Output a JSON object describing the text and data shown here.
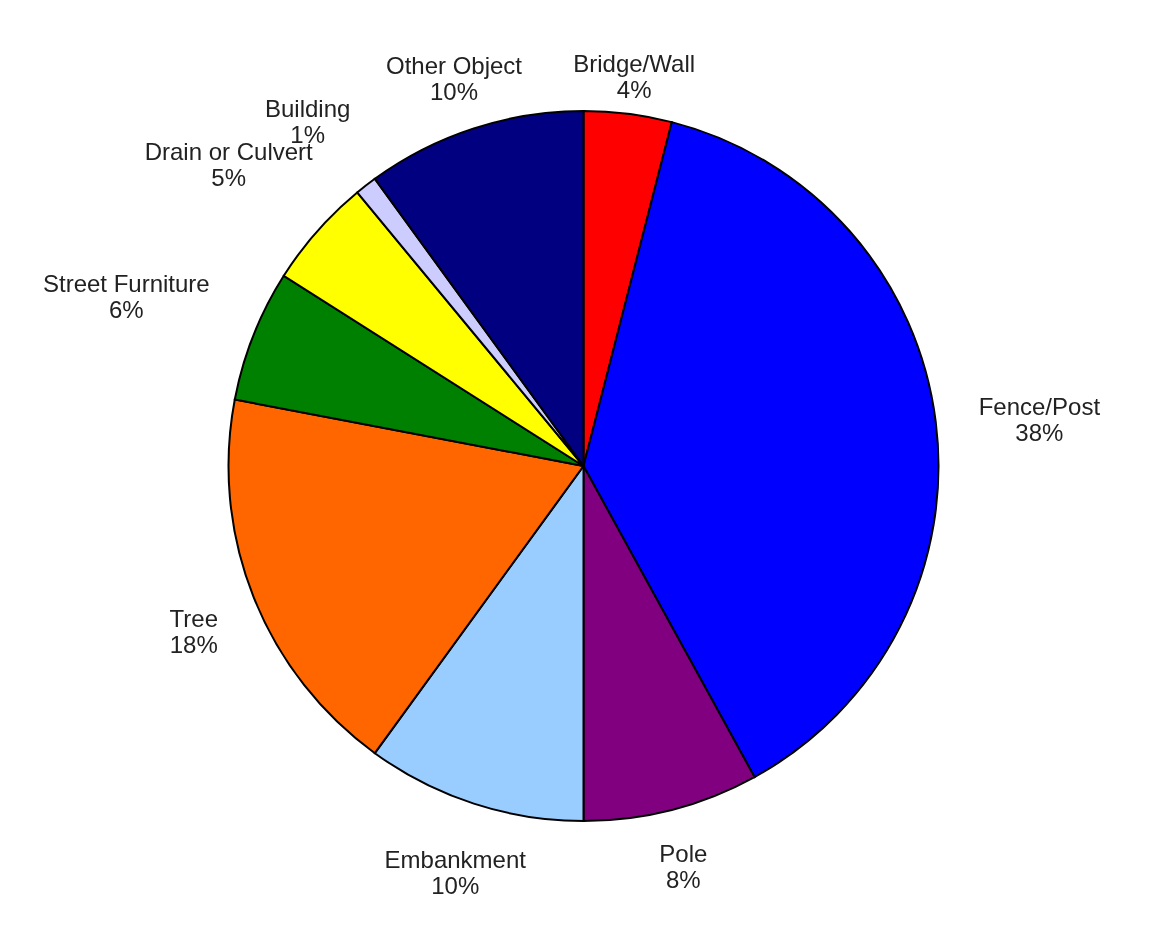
{
  "chart_data": {
    "type": "pie",
    "categories": [
      "Bridge/Wall",
      "Fence/Post",
      "Pole",
      "Embankment",
      "Tree",
      "Street Furniture",
      "Drain or Culvert",
      "Building",
      "Other Object"
    ],
    "values": [
      4,
      38,
      8,
      10,
      18,
      6,
      5,
      1,
      10
    ],
    "value_labels": [
      "4%",
      "38%",
      "8%",
      "10%",
      "18%",
      "6%",
      "5%",
      "1%",
      "10%"
    ],
    "colors": [
      "#ff0000",
      "#0000ff",
      "#800080",
      "#99ccff",
      "#ff6600",
      "#008000",
      "#ffff00",
      "#ccccff",
      "#000080"
    ]
  }
}
